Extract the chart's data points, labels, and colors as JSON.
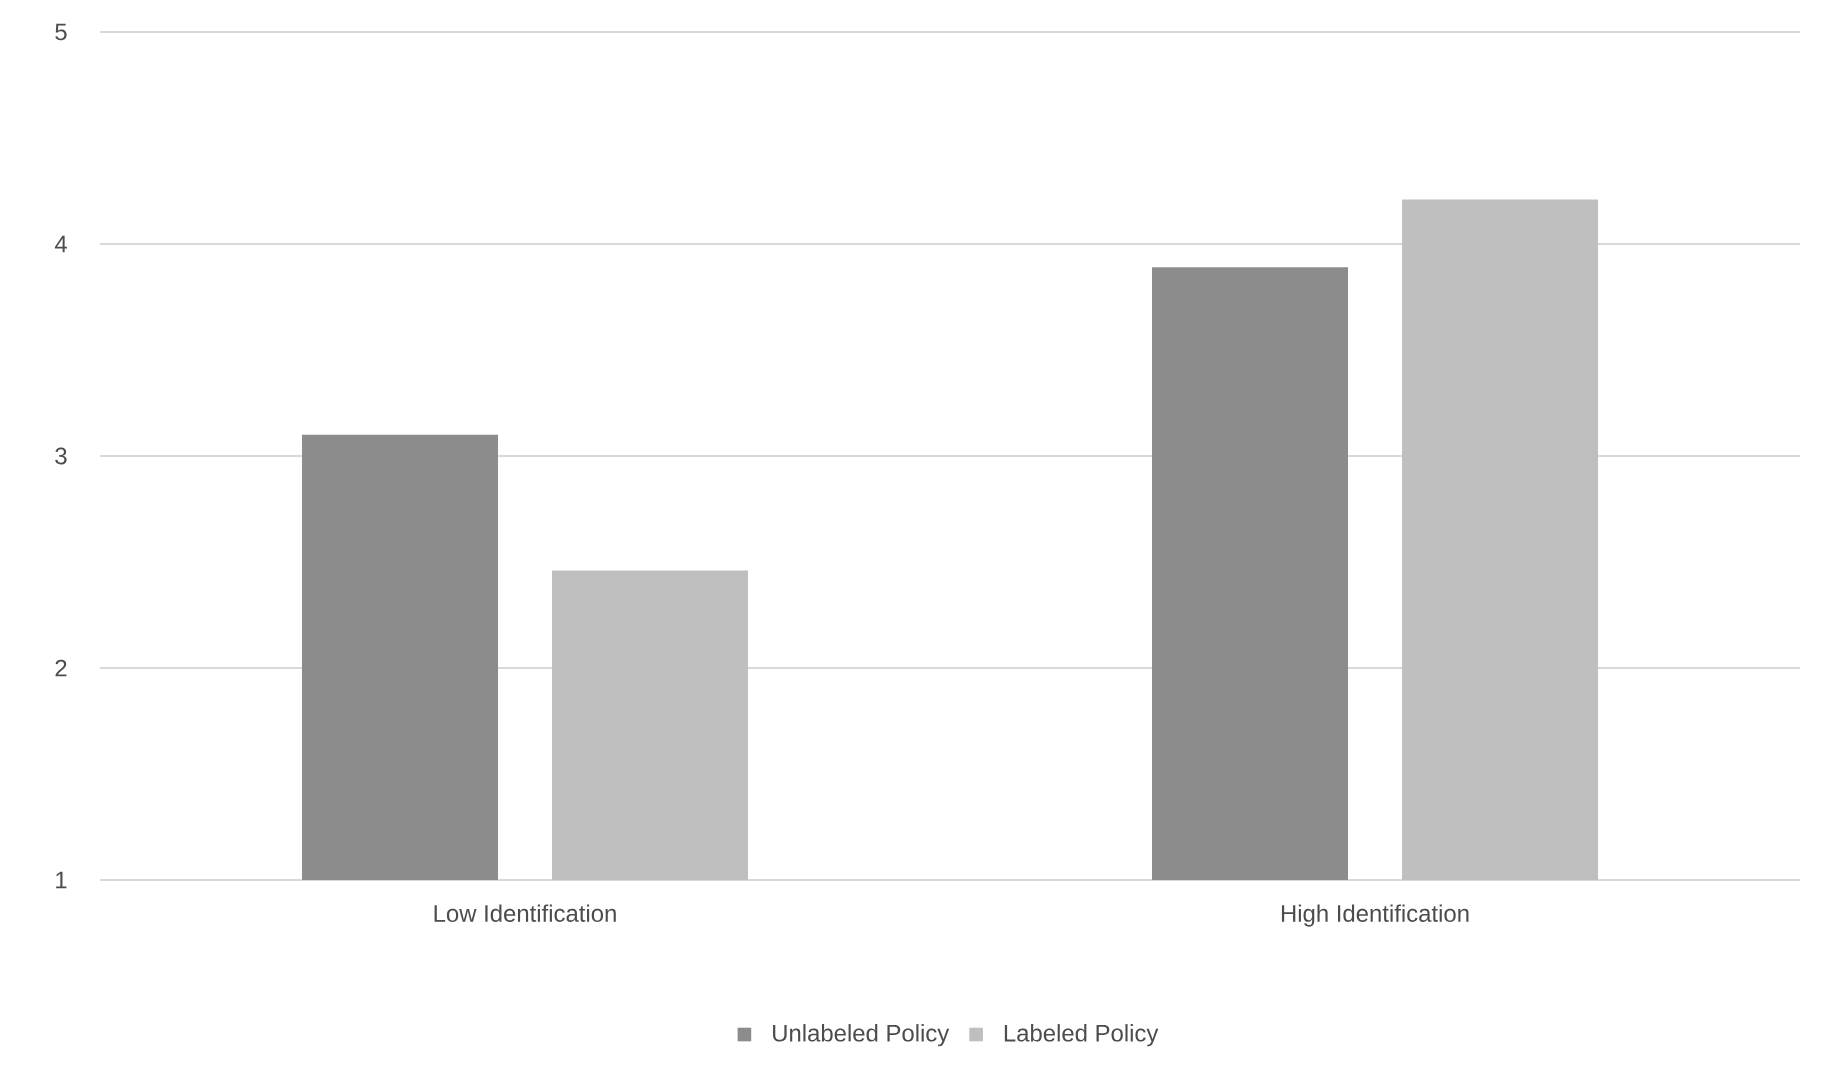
{
  "chart_data": {
    "type": "bar",
    "categories": [
      "Low Identification",
      "High Identification"
    ],
    "series": [
      {
        "name": "Unlabeled Policy",
        "color": "#8c8c8c",
        "values": [
          3.1,
          3.89
        ]
      },
      {
        "name": "Labeled Policy",
        "color": "#bfbfbf",
        "values": [
          2.46,
          4.21
        ]
      }
    ],
    "ylim": [
      1,
      5
    ],
    "yticks": [
      1,
      2,
      3,
      4,
      5
    ],
    "grid": "y",
    "legend": "bottom"
  }
}
